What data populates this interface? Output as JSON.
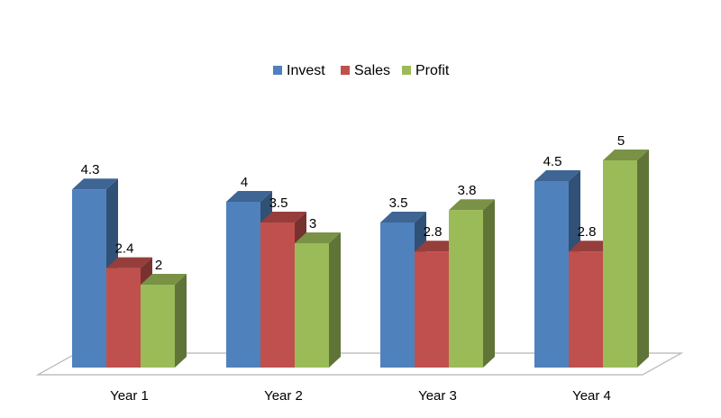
{
  "chart_data": {
    "type": "bar",
    "style": "3d-clustered-column",
    "categories": [
      "Year 1",
      "Year 2",
      "Year 3",
      "Year 4"
    ],
    "series": [
      {
        "name": "Invest",
        "values": [
          4.3,
          4,
          3.5,
          4.5
        ],
        "color": "#4F81BD"
      },
      {
        "name": "Sales",
        "values": [
          2.4,
          3.5,
          2.8,
          2.8
        ],
        "color": "#C0504D"
      },
      {
        "name": "Profit",
        "values": [
          2,
          3,
          3.8,
          5
        ],
        "color": "#9BBB59"
      }
    ],
    "data_labels": true,
    "legend_position": "top",
    "grid": false,
    "ylim": [
      0,
      5
    ]
  }
}
